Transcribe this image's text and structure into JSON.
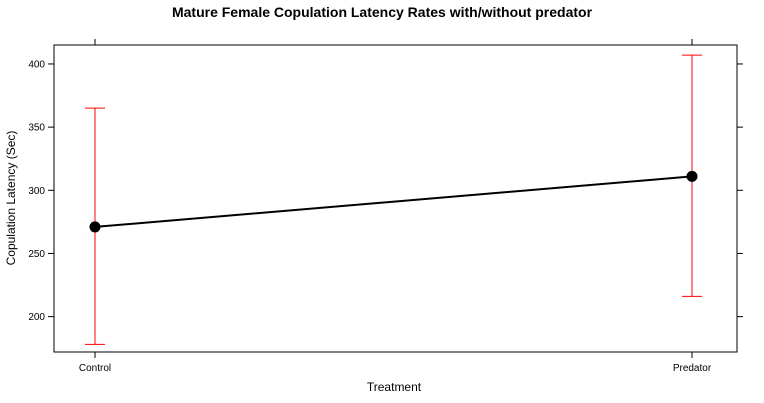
{
  "chart_data": {
    "type": "line",
    "title": "Mature Female Copulation Latency Rates with/without predator",
    "xlabel": "Treatment",
    "ylabel": "Copulation Latency (Sec)",
    "categories": [
      "Control",
      "Predator"
    ],
    "series": [
      {
        "values": [
          271,
          311
        ],
        "error_lower": [
          178,
          216
        ],
        "error_upper": [
          365,
          407
        ],
        "color": "#000000",
        "error_color": "#ff0000"
      }
    ],
    "y_ticks": [
      200,
      250,
      300,
      350,
      400
    ],
    "ylim": [
      172,
      415
    ],
    "grid": false,
    "legend": "none"
  }
}
